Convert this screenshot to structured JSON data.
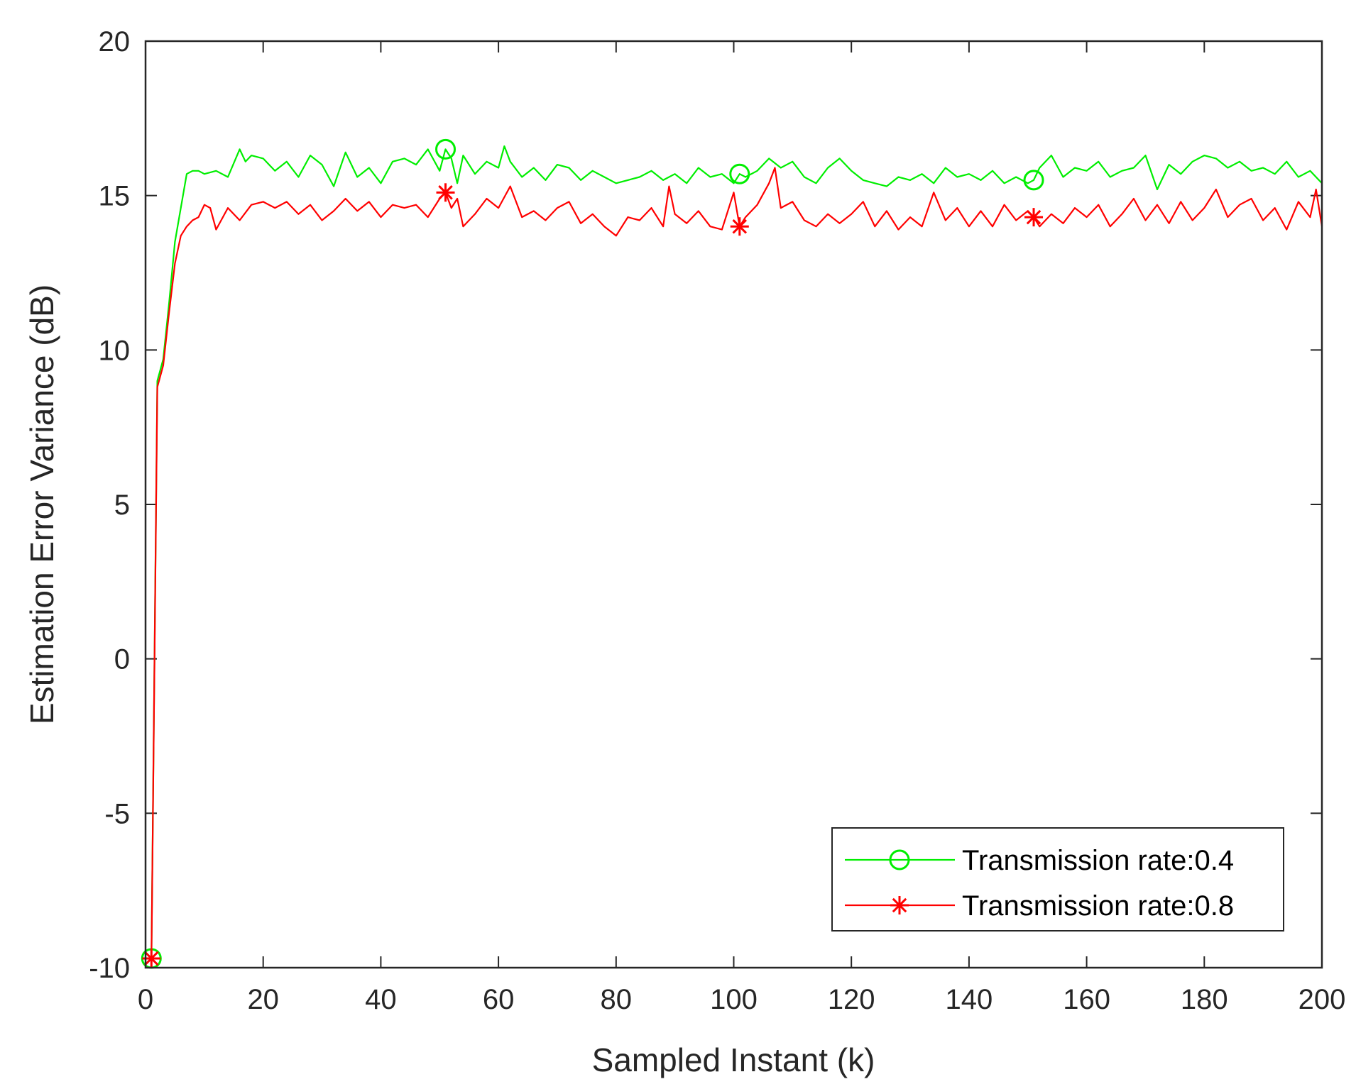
{
  "chart_data": {
    "type": "line",
    "title": "",
    "xlabel": "Sampled Instant (k)",
    "ylabel": "Estimation Error Variance (dB)",
    "xlim": [
      0,
      200
    ],
    "ylim": [
      -10,
      20
    ],
    "xticks": [
      0,
      20,
      40,
      60,
      80,
      100,
      120,
      140,
      160,
      180,
      200
    ],
    "yticks": [
      -10,
      -5,
      0,
      5,
      10,
      15,
      20
    ],
    "xtick_labels": [
      "0",
      "20",
      "40",
      "60",
      "80",
      "100",
      "120",
      "140",
      "160",
      "180",
      "200"
    ],
    "ytick_labels": [
      "-10",
      "-5",
      "0",
      "5",
      "10",
      "15",
      "20"
    ],
    "grid": false,
    "legend_position": "bottom-right",
    "series": [
      {
        "name": "Transmission rate:0.4",
        "color": "#00ee00",
        "marker": "circle",
        "marker_x": [
          1,
          51,
          101,
          151
        ],
        "x": [
          1,
          2,
          3,
          4,
          5,
          6,
          7,
          8,
          9,
          10,
          12,
          14,
          16,
          17,
          18,
          20,
          22,
          24,
          26,
          28,
          30,
          32,
          34,
          36,
          38,
          40,
          42,
          44,
          46,
          48,
          50,
          51,
          52,
          53,
          54,
          56,
          58,
          60,
          61,
          62,
          64,
          66,
          68,
          70,
          72,
          74,
          76,
          78,
          80,
          82,
          84,
          86,
          88,
          90,
          92,
          94,
          96,
          98,
          100,
          101,
          102,
          104,
          106,
          108,
          110,
          112,
          114,
          116,
          118,
          120,
          122,
          124,
          126,
          128,
          130,
          132,
          134,
          136,
          138,
          140,
          142,
          144,
          146,
          148,
          150,
          151,
          152,
          154,
          156,
          158,
          160,
          162,
          164,
          166,
          168,
          170,
          172,
          174,
          176,
          178,
          180,
          182,
          184,
          186,
          188,
          190,
          192,
          194,
          196,
          198,
          200
        ],
        "y": [
          -9.7,
          9.0,
          9.7,
          11.5,
          13.5,
          14.6,
          15.7,
          15.8,
          15.8,
          15.7,
          15.8,
          15.6,
          16.5,
          16.1,
          16.3,
          16.2,
          15.8,
          16.1,
          15.6,
          16.3,
          16.0,
          15.3,
          16.4,
          15.6,
          15.9,
          15.4,
          16.1,
          16.2,
          16.0,
          16.5,
          15.8,
          16.5,
          16.2,
          15.4,
          16.3,
          15.7,
          16.1,
          15.9,
          16.6,
          16.1,
          15.6,
          15.9,
          15.5,
          16.0,
          15.9,
          15.5,
          15.8,
          15.6,
          15.4,
          15.5,
          15.6,
          15.8,
          15.5,
          15.7,
          15.4,
          15.9,
          15.6,
          15.7,
          15.4,
          15.7,
          15.6,
          15.8,
          16.2,
          15.9,
          16.1,
          15.6,
          15.4,
          15.9,
          16.2,
          15.8,
          15.5,
          15.4,
          15.3,
          15.6,
          15.5,
          15.7,
          15.4,
          15.9,
          15.6,
          15.7,
          15.5,
          15.8,
          15.4,
          15.6,
          15.4,
          15.5,
          15.9,
          16.3,
          15.6,
          15.9,
          15.8,
          16.1,
          15.6,
          15.8,
          15.9,
          16.3,
          15.2,
          16.0,
          15.7,
          16.1,
          16.3,
          16.2,
          15.9,
          16.1,
          15.8,
          15.9,
          15.7,
          16.1,
          15.6,
          15.8,
          15.4
        ]
      },
      {
        "name": "Transmission rate:0.8",
        "color": "#ff0000",
        "marker": "asterisk",
        "marker_x": [
          1,
          51,
          101,
          151
        ],
        "x": [
          1,
          2,
          3,
          4,
          5,
          6,
          7,
          8,
          9,
          10,
          11,
          12,
          14,
          16,
          18,
          20,
          22,
          24,
          26,
          28,
          30,
          32,
          34,
          36,
          38,
          40,
          42,
          44,
          46,
          48,
          50,
          51,
          52,
          53,
          54,
          56,
          58,
          60,
          62,
          64,
          66,
          68,
          70,
          72,
          74,
          76,
          78,
          80,
          82,
          84,
          86,
          88,
          89,
          90,
          92,
          94,
          96,
          98,
          100,
          101,
          102,
          104,
          106,
          107,
          108,
          110,
          112,
          114,
          116,
          118,
          120,
          122,
          124,
          126,
          128,
          130,
          132,
          134,
          136,
          138,
          140,
          142,
          144,
          146,
          148,
          150,
          151,
          152,
          154,
          156,
          158,
          160,
          162,
          164,
          166,
          168,
          170,
          172,
          174,
          176,
          178,
          180,
          182,
          184,
          186,
          188,
          190,
          192,
          194,
          196,
          198,
          199,
          200
        ],
        "y": [
          -9.7,
          8.8,
          9.5,
          11.2,
          12.8,
          13.7,
          14.0,
          14.2,
          14.3,
          14.7,
          14.6,
          13.9,
          14.6,
          14.2,
          14.7,
          14.8,
          14.6,
          14.8,
          14.4,
          14.7,
          14.2,
          14.5,
          14.9,
          14.5,
          14.8,
          14.3,
          14.7,
          14.6,
          14.7,
          14.3,
          14.9,
          15.1,
          14.6,
          14.9,
          14.0,
          14.4,
          14.9,
          14.6,
          15.3,
          14.3,
          14.5,
          14.2,
          14.6,
          14.8,
          14.1,
          14.4,
          14.0,
          13.7,
          14.3,
          14.2,
          14.6,
          14.0,
          15.3,
          14.4,
          14.1,
          14.5,
          14.0,
          13.9,
          15.1,
          14.0,
          14.3,
          14.7,
          15.4,
          15.9,
          14.6,
          14.8,
          14.2,
          14.0,
          14.4,
          14.1,
          14.4,
          14.8,
          14.0,
          14.5,
          13.9,
          14.3,
          14.0,
          15.1,
          14.2,
          14.6,
          14.0,
          14.5,
          14.0,
          14.7,
          14.2,
          14.5,
          14.3,
          14.0,
          14.4,
          14.1,
          14.6,
          14.3,
          14.7,
          14.0,
          14.4,
          14.9,
          14.2,
          14.7,
          14.1,
          14.8,
          14.2,
          14.6,
          15.2,
          14.3,
          14.7,
          14.9,
          14.2,
          14.6,
          13.9,
          14.8,
          14.3,
          15.2,
          14.0
        ]
      }
    ]
  }
}
